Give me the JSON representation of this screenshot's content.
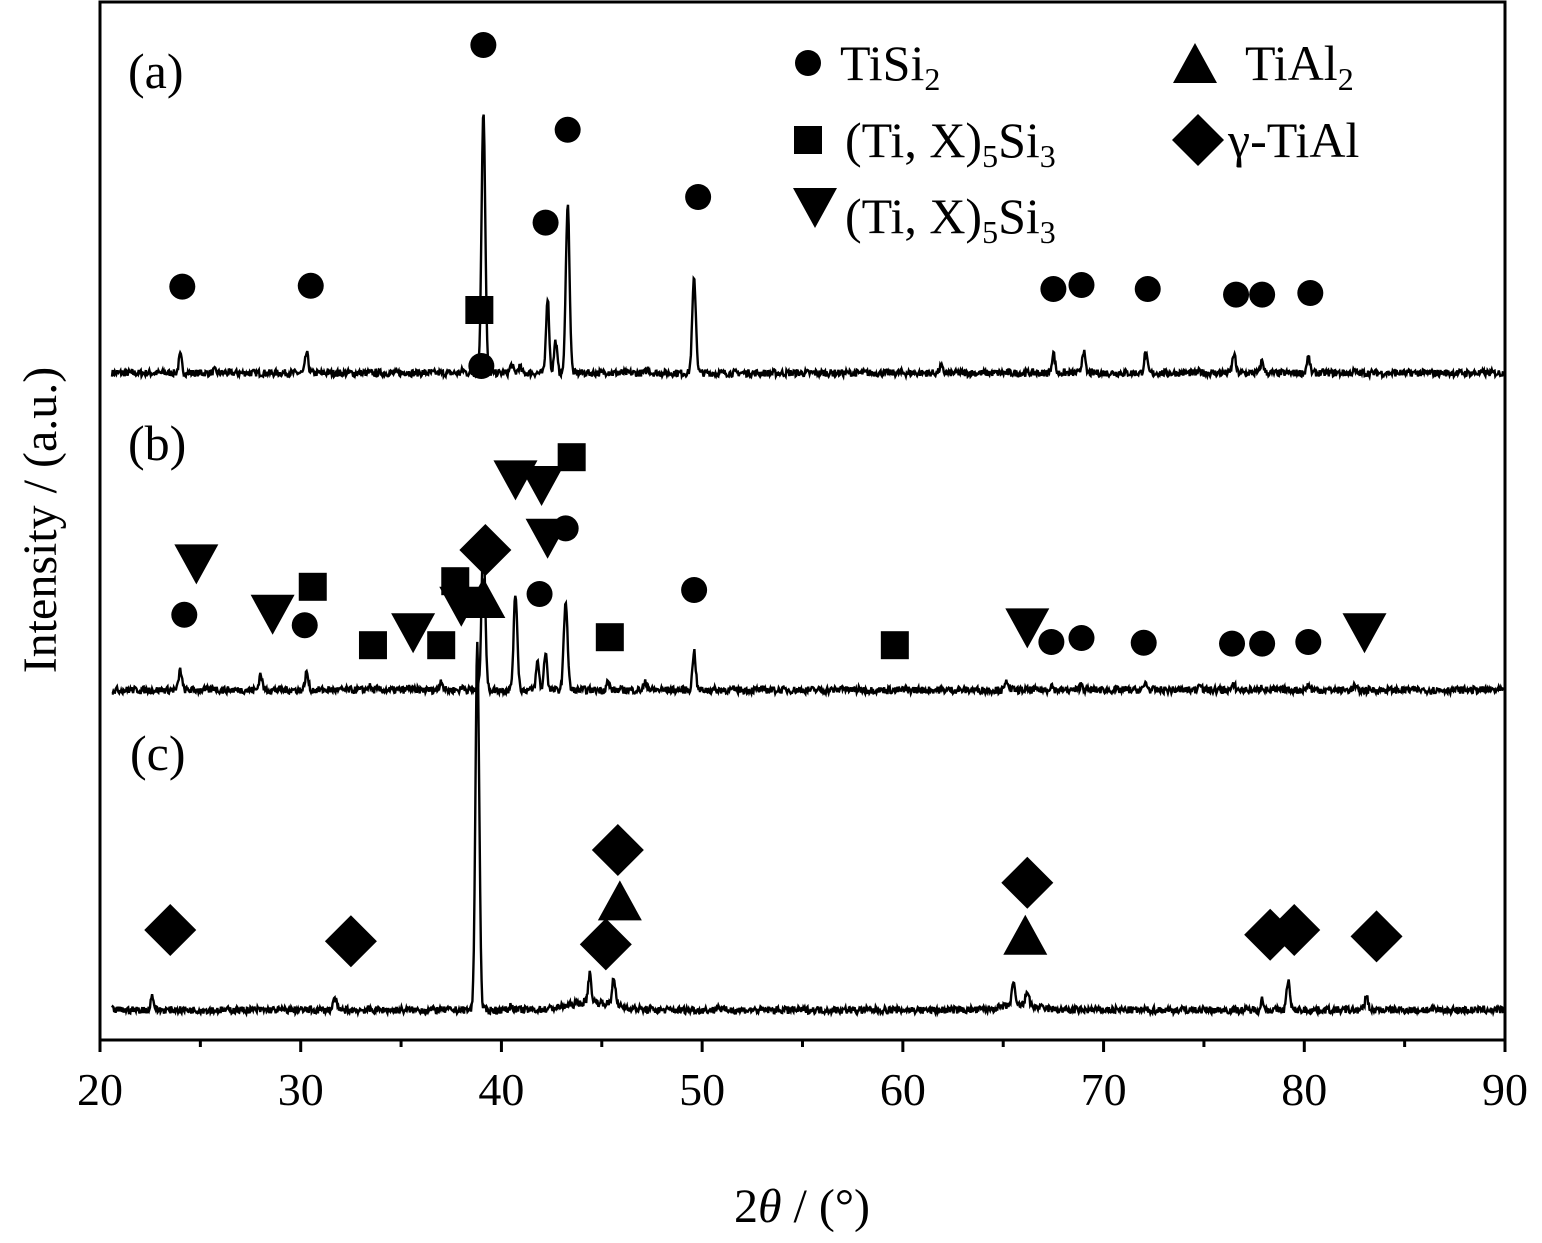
{
  "chart_data": {
    "type": "line",
    "title": "",
    "xlabel_prefix": "2",
    "xlabel_symbol": "θ",
    "xlabel_suffix": " / (°)",
    "ylabel": "Intensity / (a.u.)",
    "xlim": [
      20,
      90
    ],
    "xticks": [
      20,
      30,
      40,
      50,
      60,
      70,
      80,
      90
    ],
    "grid": false,
    "legend_position": "top-right",
    "legend": [
      {
        "marker": "circle",
        "label": "TiSi",
        "sub": "2",
        "tail": ""
      },
      {
        "marker": "square",
        "label": "(Ti, X)",
        "sub": "5",
        "tail": "Si",
        "sub2": "3"
      },
      {
        "marker": "triangle-down",
        "label": "(Ti, X)",
        "sub": "5",
        "tail": "Si",
        "sub2": "3"
      },
      {
        "marker": "triangle-up",
        "label": "TiAl",
        "sub": "2",
        "tail": ""
      },
      {
        "marker": "diamond",
        "label": "γ-TiAl",
        "sub": "",
        "tail": ""
      }
    ],
    "series": [
      {
        "name": "(a)",
        "baseline": 0.1,
        "peaks": [
          {
            "x": 24.0,
            "h": 0.22
          },
          {
            "x": 25.7,
            "h": 0.03
          },
          {
            "x": 30.3,
            "h": 0.25
          },
          {
            "x": 35.3,
            "h": 0.02
          },
          {
            "x": 38.1,
            "h": 0.03
          },
          {
            "x": 39.1,
            "h": 3.3
          },
          {
            "x": 40.5,
            "h": 0.1
          },
          {
            "x": 40.9,
            "h": 0.08
          },
          {
            "x": 42.3,
            "h": 0.95
          },
          {
            "x": 42.7,
            "h": 0.4
          },
          {
            "x": 43.3,
            "h": 2.12
          },
          {
            "x": 45.3,
            "h": 0.02
          },
          {
            "x": 47.3,
            "h": 0.06
          },
          {
            "x": 49.6,
            "h": 1.17
          },
          {
            "x": 61.9,
            "h": 0.08
          },
          {
            "x": 67.5,
            "h": 0.25
          },
          {
            "x": 69.0,
            "h": 0.28
          },
          {
            "x": 72.1,
            "h": 0.25
          },
          {
            "x": 74.8,
            "h": 0.02
          },
          {
            "x": 76.5,
            "h": 0.24
          },
          {
            "x": 77.9,
            "h": 0.15
          },
          {
            "x": 80.2,
            "h": 0.2
          },
          {
            "x": 82.5,
            "h": 0.02
          }
        ],
        "markers": [
          {
            "type": "circle",
            "x": 24.1,
            "y": 1.08
          },
          {
            "type": "circle",
            "x": 30.5,
            "y": 1.09
          },
          {
            "type": "circle",
            "x": 39.1,
            "y": 4.1
          },
          {
            "type": "circle",
            "x": 42.2,
            "y": 1.88
          },
          {
            "type": "circle",
            "x": 43.3,
            "y": 3.04
          },
          {
            "type": "circle",
            "x": 49.8,
            "y": 2.2
          },
          {
            "type": "circle",
            "x": 67.5,
            "y": 1.05
          },
          {
            "type": "circle",
            "x": 68.9,
            "y": 1.1
          },
          {
            "type": "circle",
            "x": 72.2,
            "y": 1.05
          },
          {
            "type": "circle",
            "x": 76.6,
            "y": 0.98
          },
          {
            "type": "circle",
            "x": 77.9,
            "y": 0.98
          },
          {
            "type": "circle",
            "x": 80.3,
            "y": 1.0
          }
        ]
      },
      {
        "name": "(b)",
        "baseline": 0.1,
        "peaks": [
          {
            "x": 24.0,
            "h": 0.25
          },
          {
            "x": 25.7,
            "h": 0.03
          },
          {
            "x": 28.0,
            "h": 0.2
          },
          {
            "x": 30.3,
            "h": 0.22
          },
          {
            "x": 33.4,
            "h": 0.05
          },
          {
            "x": 35.4,
            "h": 0.03
          },
          {
            "x": 37.0,
            "h": 0.12
          },
          {
            "x": 38.1,
            "h": 0.04
          },
          {
            "x": 39.1,
            "h": 1.9
          },
          {
            "x": 40.7,
            "h": 1.2
          },
          {
            "x": 41.8,
            "h": 0.35
          },
          {
            "x": 42.2,
            "h": 0.48
          },
          {
            "x": 43.2,
            "h": 1.12
          },
          {
            "x": 45.3,
            "h": 0.1
          },
          {
            "x": 47.2,
            "h": 0.1
          },
          {
            "x": 49.6,
            "h": 0.49
          },
          {
            "x": 57.0,
            "h": 0.04
          },
          {
            "x": 65.2,
            "h": 0.12
          },
          {
            "x": 67.4,
            "h": 0.06
          },
          {
            "x": 68.9,
            "h": 0.07
          },
          {
            "x": 72.1,
            "h": 0.09
          },
          {
            "x": 74.8,
            "h": 0.1
          },
          {
            "x": 76.5,
            "h": 0.06
          },
          {
            "x": 77.9,
            "h": 0.04
          },
          {
            "x": 80.2,
            "h": 0.06
          },
          {
            "x": 82.5,
            "h": 0.05
          }
        ],
        "markers": [
          {
            "type": "triangle-down",
            "x": 24.8,
            "y": 1.57
          },
          {
            "type": "circle",
            "x": 24.2,
            "y": 0.94
          },
          {
            "type": "triangle-down",
            "x": 28.6,
            "y": 0.94
          },
          {
            "type": "square",
            "x": 30.6,
            "y": 1.29
          },
          {
            "type": "circle",
            "x": 30.2,
            "y": 0.81
          },
          {
            "type": "square",
            "x": 33.6,
            "y": 0.56
          },
          {
            "type": "triangle-down",
            "x": 35.6,
            "y": 0.71
          },
          {
            "type": "square",
            "x": 37.0,
            "y": 0.56
          },
          {
            "type": "triangle-down",
            "x": 38.0,
            "y": 1.04
          },
          {
            "type": "square",
            "x": 37.7,
            "y": 1.36
          },
          {
            "type": "square",
            "x": 38.9,
            "y": 4.75
          },
          {
            "type": "circle",
            "x": 39.0,
            "y": 4.05
          },
          {
            "type": "triangle-down",
            "x": 40.7,
            "y": 2.62
          },
          {
            "type": "triangle-down",
            "x": 42.0,
            "y": 2.55
          },
          {
            "type": "triangle-down",
            "x": 42.3,
            "y": 1.89
          },
          {
            "type": "square",
            "x": 43.5,
            "y": 2.91
          },
          {
            "type": "circle",
            "x": 43.2,
            "y": 2.02
          },
          {
            "type": "circle",
            "x": 41.9,
            "y": 1.2
          },
          {
            "type": "square",
            "x": 45.4,
            "y": 0.66
          },
          {
            "type": "circle",
            "x": 49.6,
            "y": 1.25
          },
          {
            "type": "square",
            "x": 59.6,
            "y": 0.56
          },
          {
            "type": "triangle-down",
            "x": 66.2,
            "y": 0.77
          },
          {
            "type": "circle",
            "x": 67.4,
            "y": 0.6
          },
          {
            "type": "circle",
            "x": 68.9,
            "y": 0.65
          },
          {
            "type": "circle",
            "x": 72.0,
            "y": 0.59
          },
          {
            "type": "circle",
            "x": 76.4,
            "y": 0.58
          },
          {
            "type": "circle",
            "x": 77.9,
            "y": 0.58
          },
          {
            "type": "circle",
            "x": 80.2,
            "y": 0.6
          },
          {
            "type": "triangle-down",
            "x": 83.0,
            "y": 0.71
          }
        ]
      },
      {
        "name": "(c)",
        "baseline": 0.1,
        "peaks": [
          {
            "x": 22.6,
            "h": 0.18
          },
          {
            "x": 31.7,
            "h": 0.15
          },
          {
            "x": 38.8,
            "h": 4.6
          },
          {
            "x": 40.5,
            "h": 0.06
          },
          {
            "x": 44.4,
            "h": 0.35
          },
          {
            "x": 45.6,
            "h": 0.36
          },
          {
            "x": 50.8,
            "h": 0.05
          },
          {
            "x": 65.5,
            "h": 0.28
          },
          {
            "x": 66.2,
            "h": 0.2
          },
          {
            "x": 77.9,
            "h": 0.13
          },
          {
            "x": 79.2,
            "h": 0.38
          },
          {
            "x": 83.1,
            "h": 0.18
          }
        ],
        "markers": [
          {
            "type": "diamond",
            "x": 23.5,
            "y": 1.0
          },
          {
            "type": "diamond",
            "x": 32.5,
            "y": 0.86
          },
          {
            "type": "diamond",
            "x": 39.2,
            "y": 5.75
          },
          {
            "type": "triangle-up",
            "x": 39.1,
            "y": 5.15
          },
          {
            "type": "diamond",
            "x": 45.8,
            "y": 2.0
          },
          {
            "type": "triangle-up",
            "x": 45.9,
            "y": 1.37
          },
          {
            "type": "diamond",
            "x": 45.2,
            "y": 0.82
          },
          {
            "type": "diamond",
            "x": 66.2,
            "y": 1.59
          },
          {
            "type": "triangle-up",
            "x": 66.1,
            "y": 0.94
          },
          {
            "type": "diamond",
            "x": 78.3,
            "y": 0.94
          },
          {
            "type": "diamond",
            "x": 79.5,
            "y": 1.0
          },
          {
            "type": "diamond",
            "x": 83.6,
            "y": 0.92
          }
        ]
      }
    ]
  }
}
